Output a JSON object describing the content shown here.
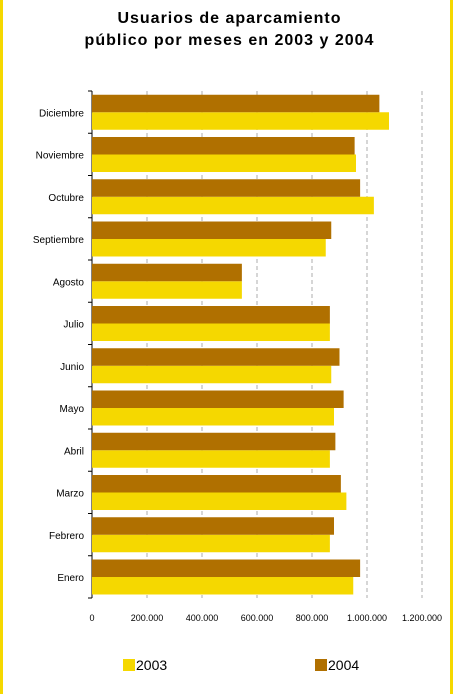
{
  "chart_data": {
    "type": "bar",
    "orientation": "horizontal",
    "title_line1": "Usuarios de aparcamiento",
    "title_line2": "público por meses en 2003 y 2004",
    "categories": [
      "Enero",
      "Febrero",
      "Marzo",
      "Abril",
      "Mayo",
      "Junio",
      "Julio",
      "Agosto",
      "Septiembre",
      "Octubre",
      "Noviembre",
      "Diciembre"
    ],
    "category_labels": [
      "Enero",
      "Febrero",
      "Marzo",
      "Abril",
      "Mayo",
      "Junio",
      "Julio",
      "Agosto",
      "Septiembre",
      "Octubre",
      "Noviembre",
      "Diciembre"
    ],
    "series": [
      {
        "name": "2003",
        "color": "#f5d800",
        "values": [
          950000,
          865000,
          925000,
          865000,
          880000,
          870000,
          865000,
          545000,
          850000,
          1025000,
          960000,
          1080000
        ]
      },
      {
        "name": "2004",
        "color": "#b07000",
        "values": [
          975000,
          880000,
          905000,
          885000,
          915000,
          900000,
          865000,
          545000,
          870000,
          975000,
          955000,
          1045000
        ]
      }
    ],
    "x_ticks": [
      "0",
      "200.000",
      "400.000",
      "600.000",
      "800.000",
      "1.000.000",
      "1.200.000"
    ],
    "xlim": [
      0,
      1200000
    ],
    "grid": "vertical dashed",
    "legend_position": "bottom"
  }
}
